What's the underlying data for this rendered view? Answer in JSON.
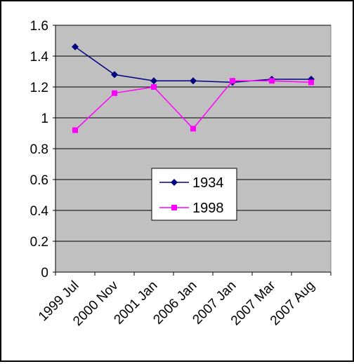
{
  "chart_data": {
    "type": "line",
    "title": "",
    "xlabel": "",
    "ylabel": "",
    "categories": [
      "1999 Jul",
      "2000 Nov",
      "2001 Jan",
      "2006 Jan",
      "2007 Jan",
      "2007 Mar",
      "2007 Aug"
    ],
    "ylim": [
      0,
      1.6
    ],
    "yticks": [
      "0",
      "0.2",
      "0.4",
      "0.6",
      "0.8",
      "1",
      "1.2",
      "1.4",
      "1.6"
    ],
    "grid": true,
    "legend_position": "center",
    "plot_background": "#c0c0c0",
    "series": [
      {
        "name": "1934",
        "color": "#000080",
        "marker": "diamond",
        "values": [
          1.46,
          1.28,
          1.24,
          1.24,
          1.23,
          1.25,
          1.25
        ]
      },
      {
        "name": "1998",
        "color": "#ff00ff",
        "marker": "square",
        "values": [
          0.92,
          1.16,
          1.2,
          0.93,
          1.24,
          1.24,
          1.23
        ]
      }
    ]
  }
}
